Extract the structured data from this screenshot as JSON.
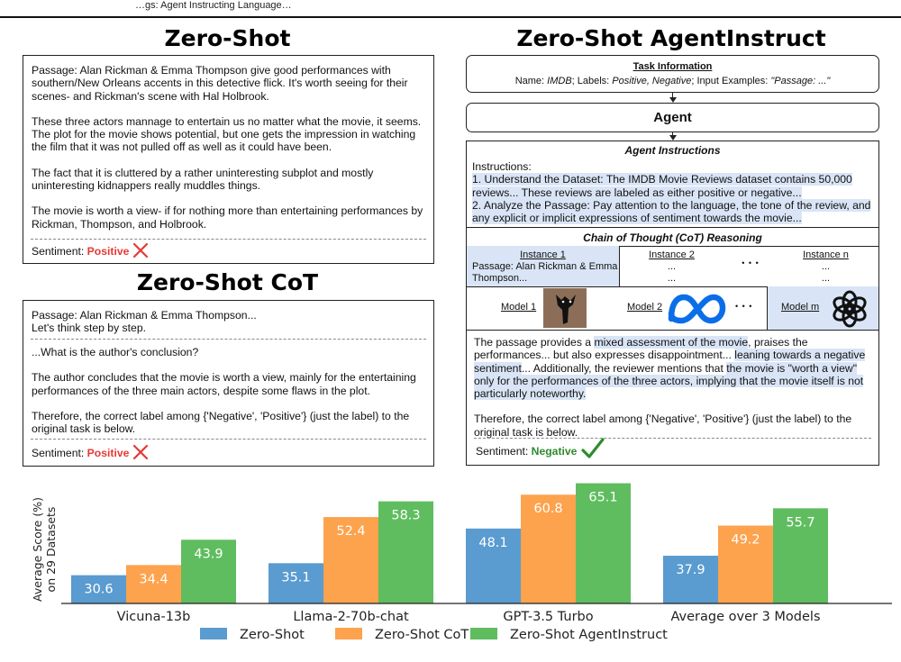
{
  "header": {
    "running_title": "…gs: Agent Instructing Language…"
  },
  "zero_shot": {
    "title": "Zero-Shot",
    "paragraphs": [
      "Passage: Alan Rickman & Emma Thompson give good performances with southern/New Orleans accents in this detective flick. It's worth seeing for their scenes- and Rickman's scene with Hal Holbrook.",
      "These three actors mannage to entertain us no matter what the movie, it seems. The plot for the movie shows potential, but one gets the impression in watching the film that it was not pulled off as well as it could have been.",
      "The fact that it is cluttered by a rather uninteresting subplot and mostly uninteresting kidnappers really muddles things.",
      "The movie is worth a view- if for nothing more than entertaining performances by Rickman, Thompson, and Holbrook."
    ],
    "sentiment_label": "Sentiment:",
    "sentiment_value": "Positive"
  },
  "zero_shot_cot": {
    "title": "Zero-Shot CoT",
    "line1": "Passage: Alan Rickman & Emma Thompson...",
    "line2": "Let's think step by step.",
    "question": "...What is the author's conclusion?",
    "answer": "The author concludes that the movie is worth a view, mainly for the entertaining performances of the three main actors, despite some flaws in the plot.",
    "therefore": "Therefore, the correct label among {'Negative', 'Positive'} (just the label) to the original task is below.",
    "sentiment_label": "Sentiment:",
    "sentiment_value": "Positive"
  },
  "agentinstruct": {
    "title": "Zero-Shot AgentInstruct",
    "task_info": {
      "heading": "Task Information",
      "name_label": "Name: ",
      "name_value": "IMDB",
      "labels_label": "; Labels: ",
      "labels_value": "Positive, Negative",
      "input_label": "; Input Examples: ",
      "input_value": "\"Passage: ...\""
    },
    "agent_label": "Agent",
    "agent_instructions": {
      "heading": "Agent Instructions",
      "l0": "Instructions:",
      "l1": "1. Understand the Dataset: The IMDB Movie Reviews dataset contains 50,000",
      "l2": "reviews... These reviews are labeled as either positive or negative...",
      "l3": "2. Analyze the Passage: Pay attention to the language, the tone of the review, and",
      "l4": "any explicit or implicit expressions of sentiment towards the movie..."
    },
    "cot": {
      "heading": "Chain of Thought (CoT) Reasoning",
      "instance1": "Instance 1",
      "instance1_text1": "Passage: Alan Rickman & Emma",
      "instance1_text2": "Thompson...",
      "instance2": "Instance 2",
      "instance_n": "Instance n",
      "ellipsis": "...",
      "ellipsis_big": "• • •",
      "model1": "Model 1",
      "model2": "Model 2",
      "modelm": "Model m"
    },
    "reasoning": {
      "r1a": "The passage provides a ",
      "r1b": "mixed assessment of the movie",
      "r1c": ", praises the",
      "r2a": "performances... but also expresses disappointment... ",
      "r2b": "leaning towards a negative",
      "r3a": "sentiment",
      "r3b": "...  Additionally, the reviewer mentions that ",
      "r3c": "the movie is \"worth a view\"",
      "r4": "only for the performances of the three actors, implying that the movie itself is not",
      "r5": "particularly noteworthy.",
      "therefore": "Therefore, the correct label among {'Negative', 'Positive'} (just the label) to the original task is below."
    },
    "sentiment_label": "Sentiment:",
    "sentiment_value": "Negative"
  },
  "chart_data": {
    "type": "bar",
    "ylabel": "Average Score (%)\non 29 Datasets",
    "ylabel_line1": "Average Score (%)",
    "ylabel_line2": "on 29 Datasets",
    "ylim": [
      20,
      70
    ],
    "categories": [
      "Vicuna-13b",
      "Llama-2-70b-chat",
      "GPT-3.5 Turbo",
      "Average over 3 Models"
    ],
    "series": [
      {
        "name": "Zero-Shot",
        "color": "#5a9bd0",
        "values": [
          30.6,
          35.1,
          48.1,
          37.9
        ]
      },
      {
        "name": "Zero-Shot CoT",
        "color": "#fda24d",
        "values": [
          34.4,
          52.4,
          60.8,
          49.2
        ]
      },
      {
        "name": "Zero-Shot AgentInstruct",
        "color": "#5fbd5f",
        "values": [
          43.9,
          58.3,
          65.1,
          55.7
        ]
      }
    ],
    "legend_position": "bottom"
  }
}
